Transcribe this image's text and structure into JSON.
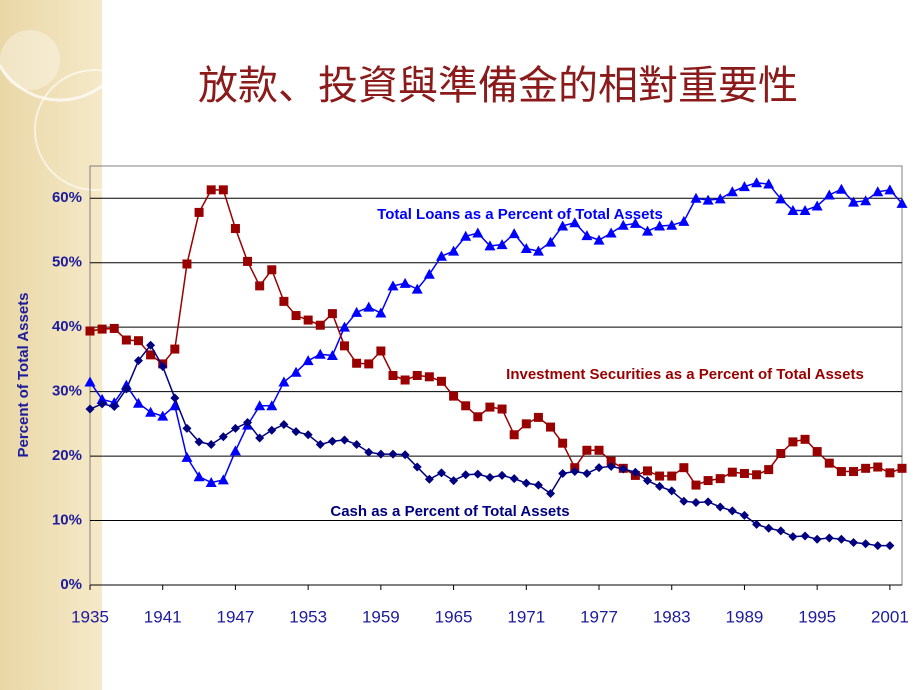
{
  "chart_data": {
    "type": "line",
    "title": "放款、投資與準備金的相對重要性",
    "ylabel": "Percent of Total Assets",
    "x": [
      1935,
      1936,
      1937,
      1938,
      1939,
      1940,
      1941,
      1942,
      1943,
      1944,
      1945,
      1946,
      1947,
      1948,
      1949,
      1950,
      1951,
      1952,
      1953,
      1954,
      1955,
      1956,
      1957,
      1958,
      1959,
      1960,
      1961,
      1962,
      1963,
      1964,
      1965,
      1966,
      1967,
      1968,
      1969,
      1970,
      1971,
      1972,
      1973,
      1974,
      1975,
      1976,
      1977,
      1978,
      1979,
      1980,
      1981,
      1982,
      1983,
      1984,
      1985,
      1986,
      1987,
      1988,
      1989,
      1990,
      1991,
      1992,
      1993,
      1994,
      1995,
      1996,
      1997,
      1998,
      1999,
      2000,
      2001,
      2002
    ],
    "series": [
      {
        "name": "Total Loans as a Percent of Total Assets",
        "color": "#0000ff",
        "marker": "triangle",
        "values": [
          31.5,
          28.8,
          28.3,
          31,
          28.2,
          26.8,
          26.2,
          27.8,
          19.8,
          16.8,
          15.9,
          16.3,
          20.8,
          24.8,
          27.8,
          27.8,
          31.5,
          33,
          34.8,
          35.8,
          35.6,
          40,
          42.3,
          43.1,
          42.2,
          46.4,
          46.8,
          45.9,
          48.2,
          51,
          51.8,
          54.1,
          54.6,
          52.6,
          52.8,
          54.5,
          52.2,
          51.8,
          53.2,
          55.7,
          56.2,
          54.2,
          53.5,
          54.6,
          55.8,
          56.1,
          54.9,
          55.7,
          55.8,
          56.4,
          60,
          59.7,
          59.9,
          61,
          61.8,
          62.4,
          62.2,
          59.9,
          58.1,
          58.1,
          58.8,
          60.5,
          61.4,
          59.4,
          59.6,
          61,
          61.3,
          59.2
        ]
      },
      {
        "name": "Investment Securities as a Percent of Total Assets",
        "color": "#990000",
        "marker": "square",
        "values": [
          39.4,
          39.7,
          39.8,
          38,
          37.9,
          35.7,
          34.3,
          36.6,
          49.8,
          57.8,
          61.3,
          61.3,
          55.3,
          50.2,
          46.4,
          48.9,
          44,
          41.8,
          41.1,
          40.3,
          42.1,
          37.1,
          34.4,
          34.3,
          36.3,
          32.5,
          31.8,
          32.5,
          32.3,
          31.6,
          29.3,
          27.8,
          26.1,
          27.6,
          27.3,
          23.3,
          25,
          26,
          24.5,
          22,
          18.2,
          20.9,
          20.9,
          19.2,
          18.1,
          17,
          17.7,
          16.9,
          16.9,
          18.2,
          15.5,
          16.2,
          16.5,
          17.5,
          17.3,
          17.1,
          17.9,
          20.4,
          22.2,
          22.6,
          20.7,
          18.9,
          17.6,
          17.6,
          18.1,
          18.3,
          17.4,
          18.1
        ]
      },
      {
        "name": "Cash as a Percent of Total Assets",
        "color": "#000080",
        "marker": "diamond",
        "values": [
          27.3,
          28.1,
          27.7,
          30.4,
          34.8,
          37.2,
          33.9,
          29,
          24.3,
          22.2,
          21.8,
          23,
          24.3,
          25.2,
          22.8,
          24,
          24.9,
          23.8,
          23.3,
          21.8,
          22.3,
          22.5,
          21.8,
          20.6,
          20.3,
          20.3,
          20.2,
          18.3,
          16.4,
          17.4,
          16.2,
          17.1,
          17.2,
          16.7,
          17,
          16.5,
          15.8,
          15.5,
          14.2,
          17.3,
          17.6,
          17.3,
          18.2,
          18.4,
          18,
          17.5,
          16.2,
          15.3,
          14.6,
          13,
          12.8,
          12.9,
          12.1,
          11.5,
          10.8,
          9.4,
          8.8,
          8.4,
          7.5,
          7.6,
          7.1,
          7.3,
          7.1,
          6.6,
          6.4,
          6.1,
          6.1,
          null
        ]
      }
    ],
    "xlim": [
      1935,
      2002
    ],
    "xticks": [
      1935,
      1941,
      1947,
      1953,
      1959,
      1965,
      1971,
      1977,
      1983,
      1989,
      1995,
      2001
    ],
    "ylim": [
      0,
      65
    ],
    "yticks": [
      {
        "value": 0,
        "label": "0%"
      },
      {
        "value": 10,
        "label": "10%"
      },
      {
        "value": 20,
        "label": "20%"
      },
      {
        "value": 30,
        "label": "30%"
      },
      {
        "value": 40,
        "label": "40%"
      },
      {
        "value": 50,
        "label": "50%"
      },
      {
        "value": 60,
        "label": "60%"
      }
    ],
    "grid": true
  }
}
